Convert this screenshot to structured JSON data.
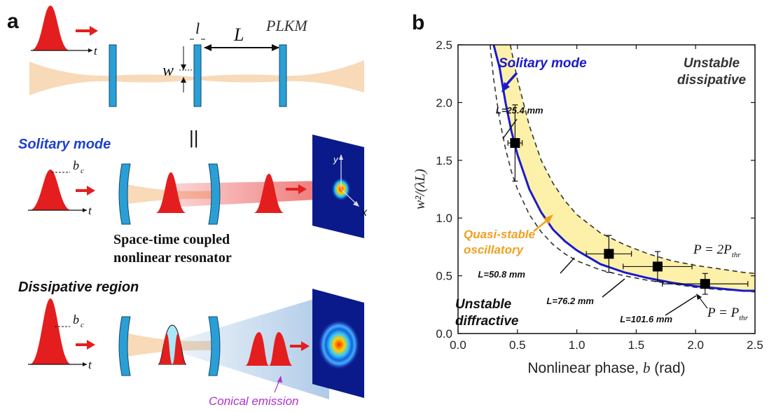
{
  "panel_a": {
    "label": "a",
    "cavity_labels": {
      "l": "l",
      "L": "L",
      "w": "w",
      "plkm": "PLKM",
      "t": "t",
      "equals": "||"
    },
    "solitary": {
      "heading": "Solitary mode",
      "bc": "b",
      "bc_sub": "c",
      "t": "t"
    },
    "resonator_caption": [
      "Space-time coupled",
      "nonlinear resonator"
    ],
    "beam_axes": {
      "y": "y",
      "x": "x"
    },
    "dissipative": {
      "heading": "Dissipative region",
      "bc": "b",
      "bc_sub": "c",
      "t": "t"
    },
    "conical_emission": "Conical emission",
    "colors": {
      "pulse": "#e41e1e",
      "mirror": "#2a9fd6",
      "beam": "#f8d9b8",
      "solitary_heading": "#1f3fd0",
      "conical": "#b030d0"
    }
  },
  "panel_b": {
    "label": "b"
  },
  "chart_data": {
    "type": "line",
    "xlabel_text": "Nonlinear phase, ",
    "xlabel_var": "b",
    "xlabel_unit": " (rad)",
    "ylabel": "w²/(λL)",
    "xlim": [
      0,
      2.5
    ],
    "ylim": [
      0,
      2.5
    ],
    "x_ticks": [
      "0.0",
      "0.5",
      "1.0",
      "1.5",
      "2.0",
      "2.5"
    ],
    "y_ticks": [
      "0.0",
      "0.5",
      "1.0",
      "1.5",
      "2.0",
      "2.5"
    ],
    "curves": {
      "solitary": {
        "x": [
          0.3,
          0.35,
          0.4,
          0.45,
          0.5,
          0.6,
          0.7,
          0.8,
          0.9,
          1.0,
          1.2,
          1.4,
          1.6,
          1.8,
          2.0,
          2.2,
          2.4,
          2.5
        ],
        "y": [
          2.5,
          2.3,
          2.0,
          1.75,
          1.55,
          1.25,
          1.05,
          0.9,
          0.8,
          0.72,
          0.6,
          0.53,
          0.48,
          0.44,
          0.41,
          0.39,
          0.37,
          0.37
        ]
      },
      "p_upper": {
        "x": [
          0.44,
          0.5,
          0.6,
          0.7,
          0.8,
          0.9,
          1.0,
          1.2,
          1.4,
          1.6,
          1.8,
          2.0,
          2.2,
          2.4,
          2.5
        ],
        "y": [
          2.5,
          2.2,
          1.8,
          1.5,
          1.3,
          1.15,
          1.03,
          0.87,
          0.77,
          0.69,
          0.63,
          0.59,
          0.56,
          0.53,
          0.52
        ]
      },
      "p_lower": {
        "x": [
          0.27,
          0.3,
          0.35,
          0.4,
          0.45,
          0.5,
          0.6,
          0.7,
          0.8,
          0.9,
          1.0,
          1.2,
          1.4,
          1.6,
          1.8,
          2.0,
          2.2,
          2.4,
          2.5
        ],
        "y": [
          2.5,
          2.2,
          1.85,
          1.6,
          1.4,
          1.25,
          1.03,
          0.88,
          0.77,
          0.69,
          0.63,
          0.55,
          0.5,
          0.46,
          0.43,
          0.4,
          0.38,
          0.37,
          0.36
        ]
      }
    },
    "points": [
      {
        "x": 0.48,
        "y": 1.65,
        "xerr": 0.06,
        "yerr": 0.33,
        "label": "L=25.4 mm"
      },
      {
        "x": 1.27,
        "y": 0.69,
        "xerr": 0.19,
        "yerr": 0.16,
        "label": "L=50.8 mm"
      },
      {
        "x": 1.68,
        "y": 0.58,
        "xerr": 0.29,
        "yerr": 0.13,
        "label": "L=76.2 mm"
      },
      {
        "x": 2.08,
        "y": 0.43,
        "xerr": 0.36,
        "yerr": 0.09,
        "label": "L=101.6 mm"
      }
    ],
    "annotations": {
      "solitary_mode": "Solitary mode",
      "unstable_dissipative": [
        "Unstable",
        "dissipative"
      ],
      "quasi_stable": [
        "Quasi-stable",
        "oscillatory"
      ],
      "unstable_diffractive": [
        "Unstable",
        "diffractive"
      ],
      "p_upper_label": "P = 2P",
      "p_lower_label": "P = P",
      "p_sub": "thr"
    },
    "colors": {
      "solitary": "#1a1acc",
      "dashed": "#333333",
      "fill": "#fdf0a8",
      "orange": "#f0a020",
      "marker": "#000000"
    }
  }
}
